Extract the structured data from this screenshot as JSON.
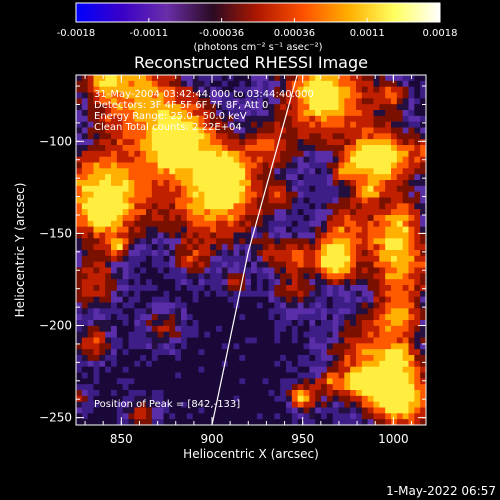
{
  "colorbar": {
    "ticks": [
      "-0.0018",
      "-0.0011",
      "-0.00036",
      "0.00036",
      "0.0011",
      "0.0018"
    ],
    "unit_label": "(photons cm⁻² s⁻¹ asec⁻²)",
    "colors": [
      "#0000ff",
      "#3a00c8",
      "#6a2ea8",
      "#2a0a22",
      "#b01800",
      "#ff5000",
      "#ffb000",
      "#ffff60",
      "#ffffff"
    ]
  },
  "title": "Reconstructed RHESSI Image",
  "info": {
    "time": "31-May-2004 03:42:44.000 to 03:44:40.000",
    "detectors": "Detectors: 3F 4F 5F 6F 7F 8F, Att 0",
    "energy": "Energy Range: 25.0 - 50.0 keV",
    "clean": "Clean     Total counts: 2.22E+04"
  },
  "peak": "Position of Peak = [842,-133]",
  "axes": {
    "xlabel": "Heliocentric X (arcsec)",
    "ylabel": "Heliocentric Y (arcsec)",
    "xticks": [
      {
        "value": 850,
        "label": "850"
      },
      {
        "value": 900,
        "label": "900"
      },
      {
        "value": 950,
        "label": "950"
      },
      {
        "value": 1000,
        "label": "1000"
      }
    ],
    "yticks": [
      {
        "value": -100,
        "label": "−100"
      },
      {
        "value": -150,
        "label": "−150"
      },
      {
        "value": -200,
        "label": "−200"
      },
      {
        "value": -250,
        "label": "−250"
      }
    ],
    "xlim": [
      825,
      1018
    ],
    "ylim": [
      -254,
      -64
    ]
  },
  "limb": [
    [
      947,
      -64
    ],
    [
      920,
      -160
    ],
    [
      900,
      -254
    ]
  ],
  "timestamp": "1-May-2022 06:57"
}
